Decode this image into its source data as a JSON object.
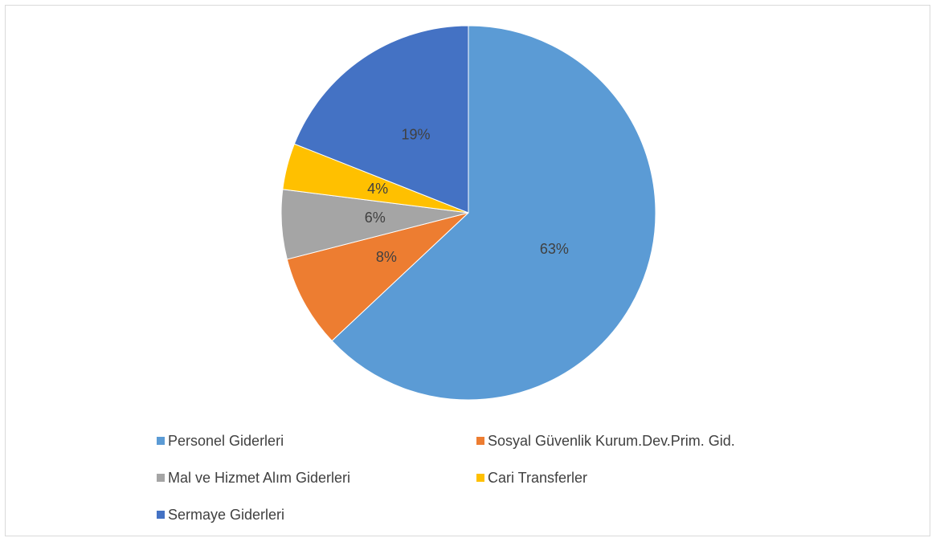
{
  "chart_data": {
    "type": "pie",
    "categories": [
      "Personel Giderleri",
      "Sosyal Güvenlik Kurum.Dev.Prim. Gid.",
      "Mal ve Hizmet Alım Giderleri",
      "Cari Transferler",
      "Sermaye Giderleri"
    ],
    "values": [
      63,
      8,
      6,
      4,
      19
    ],
    "value_labels": [
      "63%",
      "8%",
      "6%",
      "4%",
      "19%"
    ],
    "colors": [
      "#5b9bd5",
      "#ed7d31",
      "#a5a5a5",
      "#ffc000",
      "#4472c4"
    ],
    "legend": "bottom"
  }
}
